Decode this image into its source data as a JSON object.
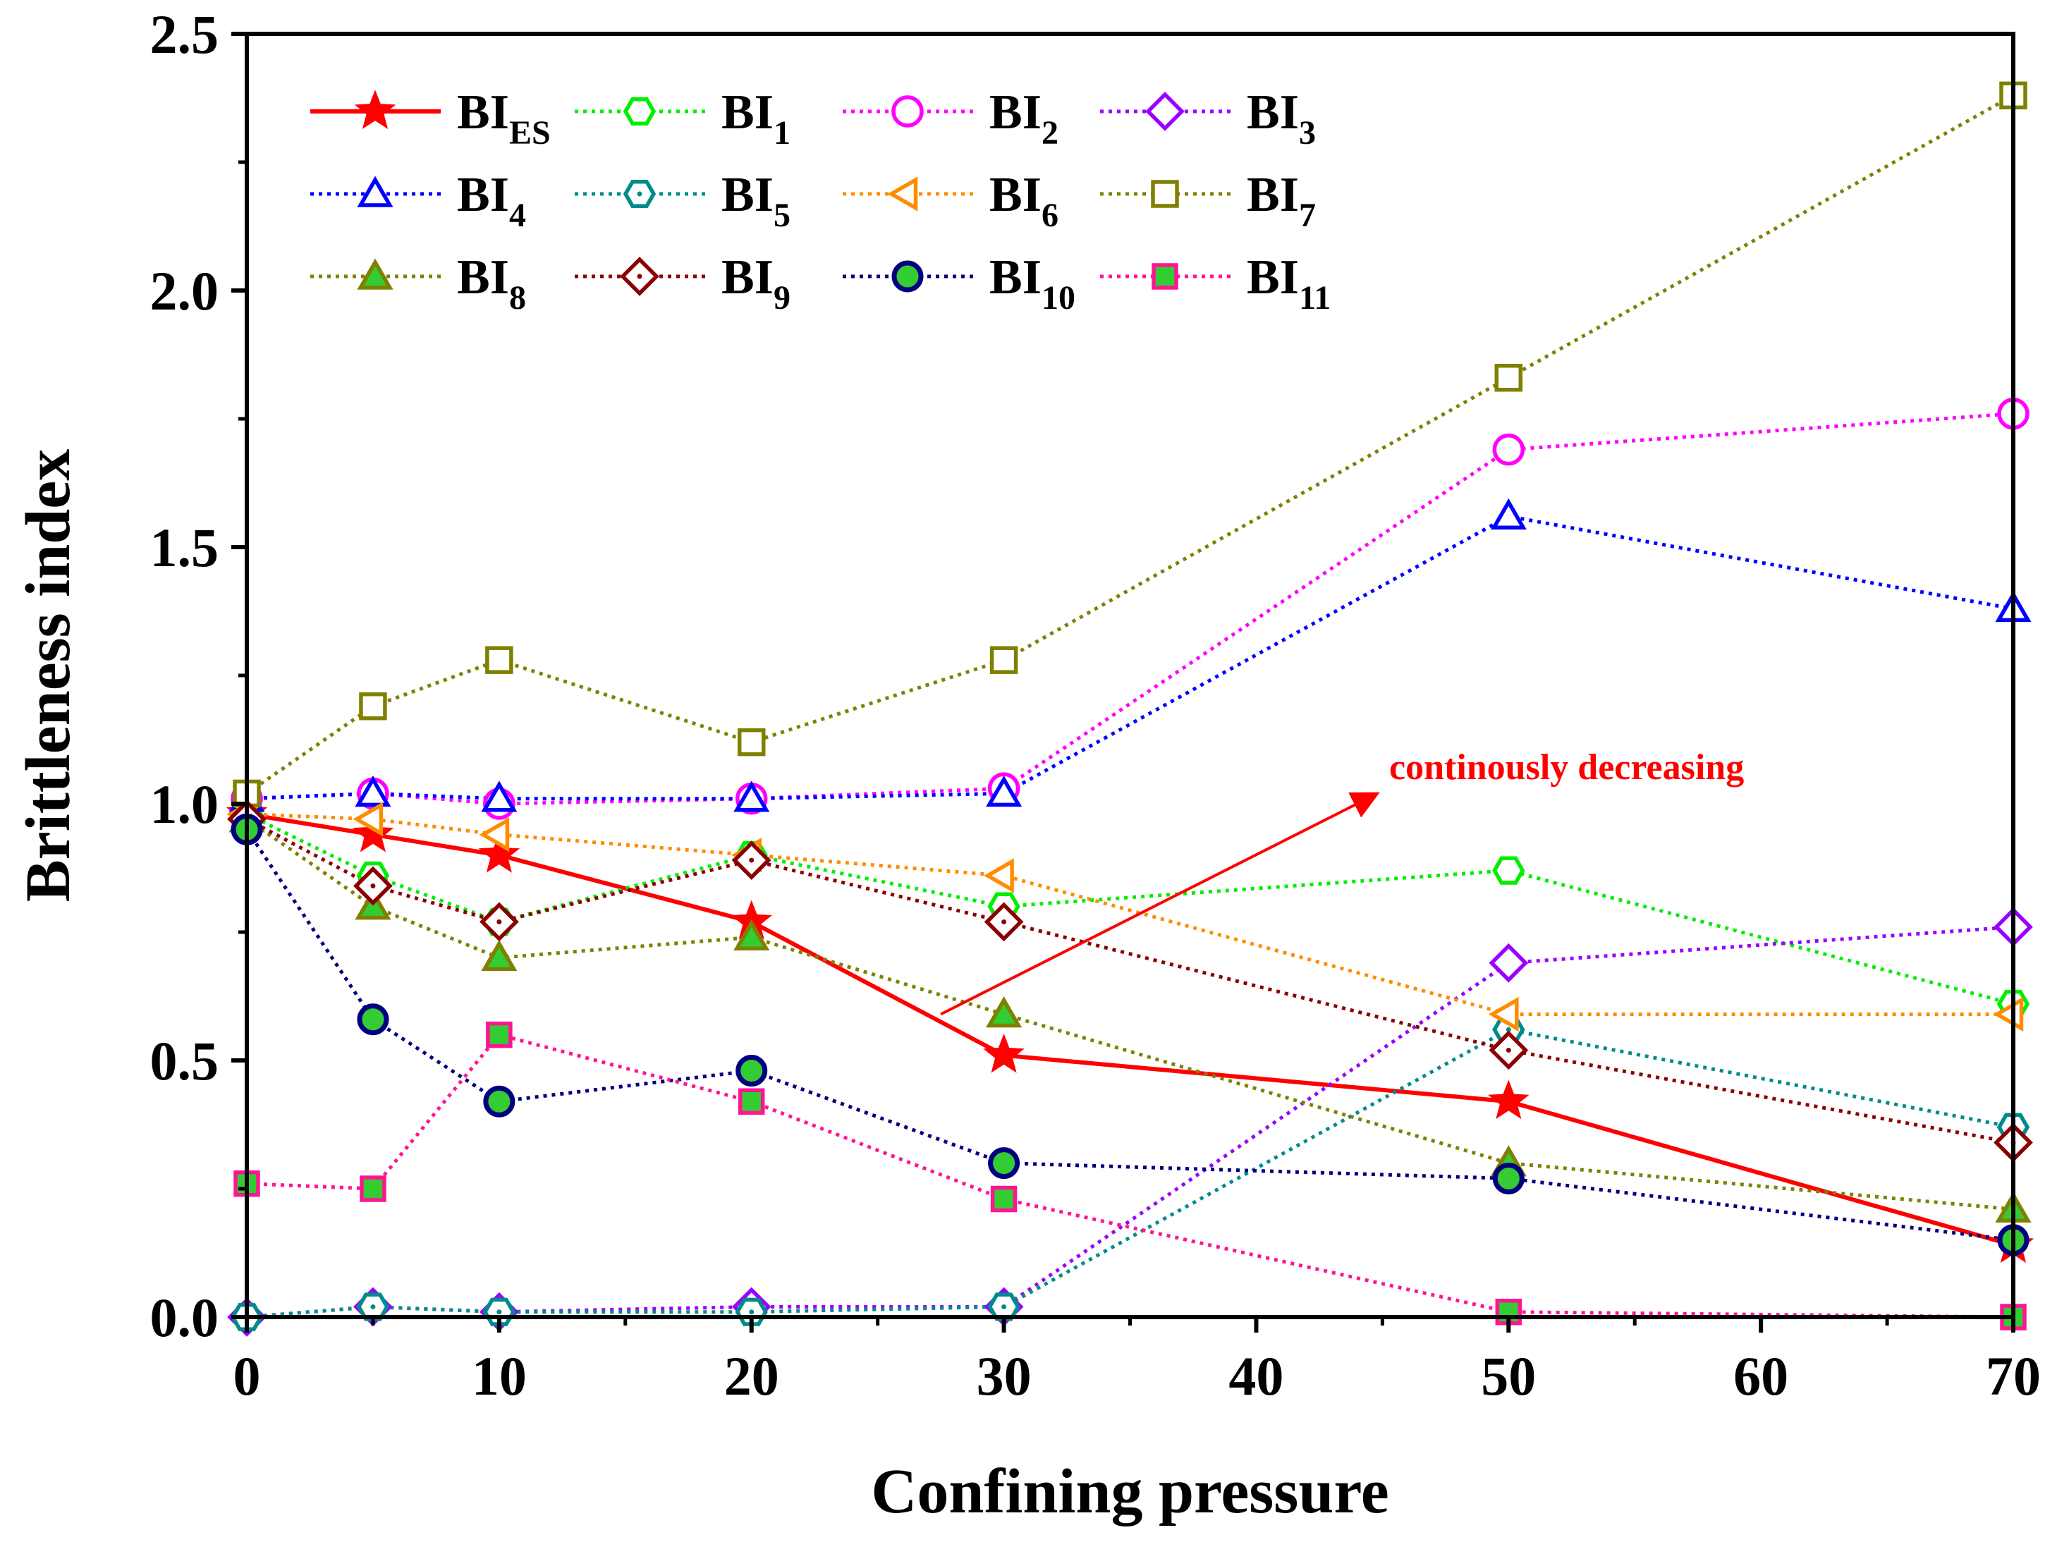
{
  "chart_data": {
    "type": "line",
    "title": "",
    "xlabel": "Confining pressure",
    "ylabel": "Brittleness index",
    "xlim": [
      0,
      70
    ],
    "ylim": [
      0,
      2.5
    ],
    "xticks": [
      0,
      10,
      20,
      30,
      40,
      50,
      60,
      70
    ],
    "xtick_labels": [
      "0",
      "10",
      "20",
      "30",
      "40",
      "50",
      "60",
      "70"
    ],
    "yticks": [
      0,
      0.5,
      1.0,
      1.5,
      2.0,
      2.5
    ],
    "ytick_labels": [
      "0.0",
      "0.5",
      "1.0",
      "1.5",
      "2.0",
      "2.5"
    ],
    "grid": false,
    "legend_position": "top-left",
    "annotation": {
      "text": "continously decreasing",
      "color": "#ff0000",
      "arrow_from": [
        27.5,
        0.59
      ],
      "arrow_to": [
        44.8,
        1.02
      ]
    },
    "series": [
      {
        "name": "BI",
        "sub": "ES",
        "color": "#ff0000",
        "marker": "star",
        "dash": "solid",
        "x": [
          0,
          5,
          10,
          20,
          30,
          50,
          70
        ],
        "values": [
          0.98,
          0.94,
          0.9,
          0.77,
          0.51,
          0.42,
          0.14
        ]
      },
      {
        "name": "BI",
        "sub": "1",
        "color": "#00ee00",
        "marker": "hexagon",
        "dash": "dotted",
        "x": [
          0,
          5,
          10,
          20,
          30,
          50,
          70
        ],
        "values": [
          0.98,
          0.86,
          0.77,
          0.9,
          0.8,
          0.87,
          0.61
        ]
      },
      {
        "name": "BI",
        "sub": "2",
        "color": "#ff00ff",
        "marker": "circle",
        "dash": "dotted",
        "x": [
          0,
          5,
          10,
          20,
          30,
          50,
          70
        ],
        "values": [
          1.01,
          1.02,
          1.0,
          1.01,
          1.03,
          1.69,
          1.76
        ]
      },
      {
        "name": "BI",
        "sub": "3",
        "color": "#9a00ff",
        "marker": "diamond",
        "dash": "dotted",
        "x": [
          0,
          5,
          10,
          20,
          30,
          50,
          70
        ],
        "values": [
          0.0,
          0.02,
          0.01,
          0.02,
          0.02,
          0.69,
          0.76
        ]
      },
      {
        "name": "BI",
        "sub": "4",
        "color": "#0000ff",
        "marker": "triangle-up",
        "dash": "dotted",
        "x": [
          0,
          5,
          10,
          20,
          30,
          50,
          70
        ],
        "values": [
          1.01,
          1.02,
          1.01,
          1.01,
          1.02,
          1.56,
          1.38
        ]
      },
      {
        "name": "BI",
        "sub": "5",
        "color": "#008b8b",
        "marker": "hexagon-dot",
        "dash": "dotted",
        "x": [
          0,
          5,
          10,
          20,
          30,
          50,
          70
        ],
        "values": [
          0.0,
          0.02,
          0.01,
          0.01,
          0.02,
          0.56,
          0.37
        ]
      },
      {
        "name": "BI",
        "sub": "6",
        "color": "#ff8c00",
        "marker": "triangle-left",
        "dash": "dotted",
        "x": [
          0,
          5,
          10,
          20,
          30,
          50,
          70
        ],
        "values": [
          0.98,
          0.97,
          0.94,
          0.9,
          0.86,
          0.59,
          0.59
        ]
      },
      {
        "name": "BI",
        "sub": "7",
        "color": "#808000",
        "marker": "square",
        "dash": "dotted",
        "x": [
          0,
          5,
          10,
          20,
          30,
          50,
          70
        ],
        "values": [
          1.02,
          1.19,
          1.28,
          1.12,
          1.28,
          1.83,
          2.38
        ]
      },
      {
        "name": "BI",
        "sub": "8",
        "color": "#808000",
        "marker": "triangle-filled",
        "dash": "dotted",
        "x": [
          0,
          5,
          10,
          20,
          30,
          50,
          70
        ],
        "values": [
          0.97,
          0.8,
          0.7,
          0.74,
          0.59,
          0.3,
          0.21
        ]
      },
      {
        "name": "BI",
        "sub": "9",
        "color": "#8b0000",
        "marker": "diamond-dot",
        "dash": "dotted",
        "x": [
          0,
          5,
          10,
          20,
          30,
          50,
          70
        ],
        "values": [
          0.97,
          0.84,
          0.77,
          0.89,
          0.77,
          0.52,
          0.34
        ]
      },
      {
        "name": "BI",
        "sub": "10",
        "color": "#000080",
        "marker": "circle-filled",
        "dash": "dotted",
        "x": [
          0,
          5,
          10,
          20,
          30,
          50,
          70
        ],
        "values": [
          0.95,
          0.58,
          0.42,
          0.48,
          0.3,
          0.27,
          0.15
        ]
      },
      {
        "name": "BI",
        "sub": "11",
        "color": "#ff1493",
        "marker": "square-filled",
        "dash": "dotted",
        "x": [
          0,
          5,
          10,
          20,
          30,
          50,
          70
        ],
        "values": [
          0.26,
          0.25,
          0.55,
          0.42,
          0.23,
          0.01,
          0.0
        ]
      }
    ]
  }
}
